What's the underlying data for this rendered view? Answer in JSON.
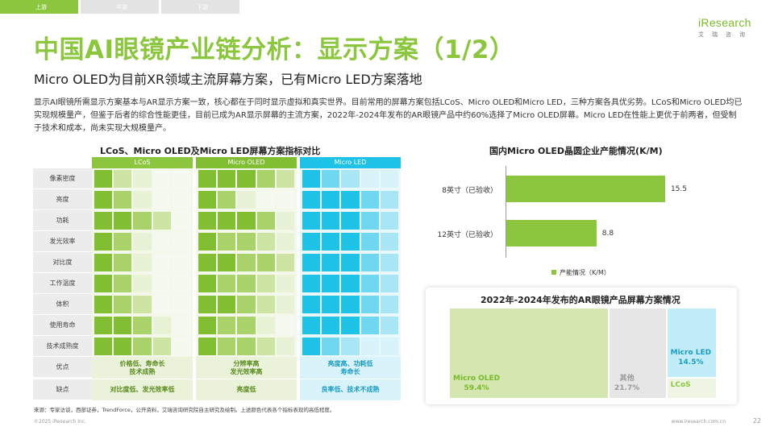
{
  "tabs": [
    {
      "label": "上游",
      "active": true
    },
    {
      "label": "中游",
      "active": false
    },
    {
      "label": "下游",
      "active": false
    }
  ],
  "logo": {
    "main": "iResearch",
    "sub": "艾瑞咨询"
  },
  "title": "中国AI眼镜产业链分析：显示方案（1/2）",
  "subtitle": "Micro OLED为目前XR领域主流屏幕方案，已有Micro LED方案落地",
  "description": "显示AI眼镜所需显示方案基本与AR显示方案一致，核心都在于同时显示虚拟和真实世界。目前常用的屏幕方案包括LCoS、Micro OLED和Micro LED，三种方案各具优劣势。LCoS和Micro OLED均已实现规模量产，但鉴于后者的综合性能更佳，目前已成为AR显示屏幕的主流方案，2022年-2024年发布的AR眼镜产品中约60%选择了Micro OLED屏幕。Micro LED在性能上更优于前两者，但受制于技术和成本，尚未实现大规模量产。",
  "comparison": {
    "title": "LCoS、Micro OLED及Micro LED屏幕方案指标对比",
    "columns": [
      "LCoS",
      "Micro OLED",
      "Micro LED"
    ],
    "column_colors": [
      "#8cc63f",
      "#82be32",
      "#1ec2e6"
    ],
    "rows": [
      {
        "label": "像素密度",
        "scores": [
          [
            1,
            3,
            4,
            5,
            5
          ],
          [
            1,
            1,
            1,
            2,
            3
          ],
          [
            1,
            2,
            3,
            4,
            4
          ]
        ]
      },
      {
        "label": "亮度",
        "scores": [
          [
            1,
            2,
            4,
            5,
            5
          ],
          [
            1,
            2,
            4,
            5,
            5
          ],
          [
            1,
            1,
            1,
            2,
            3
          ]
        ]
      },
      {
        "label": "功耗",
        "scores": [
          [
            1,
            1,
            2,
            3,
            5
          ],
          [
            1,
            1,
            1,
            2,
            4
          ],
          [
            1,
            1,
            1,
            2,
            3
          ]
        ]
      },
      {
        "label": "发光效率",
        "scores": [
          [
            1,
            2,
            4,
            5,
            5
          ],
          [
            1,
            2,
            2,
            3,
            4
          ],
          [
            1,
            1,
            1,
            2,
            3
          ]
        ]
      },
      {
        "label": "对比度",
        "scores": [
          [
            1,
            2,
            4,
            5,
            5
          ],
          [
            1,
            1,
            2,
            2,
            3
          ],
          [
            1,
            1,
            1,
            2,
            3
          ]
        ]
      },
      {
        "label": "工作温度",
        "scores": [
          [
            1,
            2,
            4,
            5,
            5
          ],
          [
            1,
            2,
            2,
            3,
            4
          ],
          [
            1,
            1,
            1,
            2,
            3
          ]
        ]
      },
      {
        "label": "体积",
        "scores": [
          [
            1,
            2,
            3,
            5,
            5
          ],
          [
            1,
            1,
            2,
            3,
            4
          ],
          [
            1,
            1,
            1,
            2,
            3
          ]
        ]
      },
      {
        "label": "使用寿命",
        "scores": [
          [
            1,
            1,
            2,
            4,
            5
          ],
          [
            1,
            2,
            2,
            4,
            5
          ],
          [
            1,
            1,
            1,
            2,
            3
          ]
        ]
      },
      {
        "label": "技术成熟度",
        "scores": [
          [
            1,
            1,
            2,
            3,
            5
          ],
          [
            1,
            2,
            2,
            3,
            4
          ],
          [
            1,
            2,
            3,
            4,
            4
          ]
        ]
      }
    ],
    "pros_label": "优点",
    "pros": [
      "价格低、寿命长\n技术成熟",
      "分辨率高\n发光效率高",
      "亮度高、功耗低\n寿命长"
    ],
    "cons_label": "缺点",
    "cons": [
      "对比度低、发光效率低",
      "亮度低",
      "良率低、技术不成熟"
    ]
  },
  "capacity_chart": {
    "title": "国内Micro OLED晶圆企业产能情况(K/M)",
    "legend": "产能情况（K/M）",
    "chart_data": {
      "type": "bar",
      "orientation": "horizontal",
      "categories": [
        "8英寸（已验收）",
        "12英寸（已验收）"
      ],
      "values": [
        15.5,
        8.8
      ],
      "value_labels": [
        "15.5",
        "8.8"
      ],
      "title": "国内Micro OLED晶圆企业产能情况(K/M)",
      "series_name": "产能情况（K/M）",
      "xlim": [
        0,
        17
      ]
    }
  },
  "share_chart": {
    "title": "2022年-2024年发布的AR眼镜产品屏幕方案情况",
    "chart_data": {
      "type": "mekko",
      "title": "2022年-2024年发布的AR眼镜产品屏幕方案情况",
      "segments": [
        {
          "name": "Micro OLED",
          "value": 59.4,
          "label": "59.4%",
          "color": "#d4e7b0",
          "text_color": "#7ab929"
        },
        {
          "name": "其他",
          "value": 21.7,
          "label": "21.7%",
          "color": "#e6e6e6",
          "text_color": "#999999"
        },
        {
          "name": "Micro LED",
          "value": 14.5,
          "label": "14.5%",
          "color": "#c2ecf7",
          "text_color": "#1a9dc0"
        },
        {
          "name": "LCoS",
          "value": 4.4,
          "label": "",
          "color": "#eef5e3",
          "text_color": "#8cc63f"
        }
      ]
    }
  },
  "source": "来源：专家访谈，西部证券，TrendForce，公开资料，艾瑞咨询研究院自主研究及绘制。上述颜色代表各个指标表现的高低程度。",
  "footer": {
    "left": "©2025 iResearch Inc.",
    "right": "www.iresearch.com.cn",
    "page": "22"
  }
}
